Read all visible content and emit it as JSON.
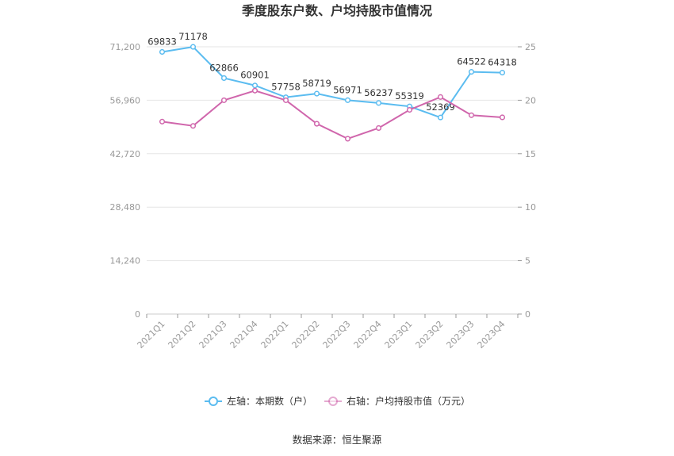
{
  "chart_data": {
    "type": "line",
    "title": "季度股东户数、户均持股市值情况",
    "categories": [
      "2021Q1",
      "2021Q2",
      "2021Q3",
      "2021Q4",
      "2022Q1",
      "2022Q2",
      "2022Q3",
      "2022Q4",
      "2023Q1",
      "2023Q2",
      "2023Q3",
      "2023Q4"
    ],
    "left_axis": {
      "ylim": [
        0,
        71200
      ],
      "ticks": [
        "0",
        "14,240",
        "28,480",
        "42,720",
        "56,960",
        "71,200"
      ],
      "tick_values": [
        0,
        14240,
        28480,
        42720,
        56960,
        71200
      ]
    },
    "right_axis": {
      "ylim": [
        0,
        25
      ],
      "ticks": [
        "0",
        "5",
        "10",
        "15",
        "20",
        "25"
      ],
      "tick_values": [
        0,
        5,
        10,
        15,
        20,
        25
      ]
    },
    "series": [
      {
        "name": "左轴：本期数（户）",
        "axis": "left",
        "color": "#5bbcf0",
        "values": [
          69833,
          71178,
          62866,
          60901,
          57758,
          58719,
          56971,
          56237,
          55319,
          52369,
          64522,
          64318
        ],
        "labels": [
          "69833",
          "71178",
          "62866",
          "60901",
          "57758",
          "58719",
          "56971",
          "56237",
          "55319",
          "52369",
          "64522",
          "64318"
        ]
      },
      {
        "name": "右轴：户均持股市值（万元）",
        "axis": "right",
        "color": "#d066ac",
        "values": [
          18.0,
          17.6,
          20.0,
          20.9,
          20.0,
          17.8,
          16.4,
          17.4,
          19.1,
          20.3,
          18.6,
          18.4
        ]
      }
    ],
    "grid": true,
    "legend_position": "bottom"
  },
  "footer": {
    "source": "数据来源：恒生聚源"
  }
}
